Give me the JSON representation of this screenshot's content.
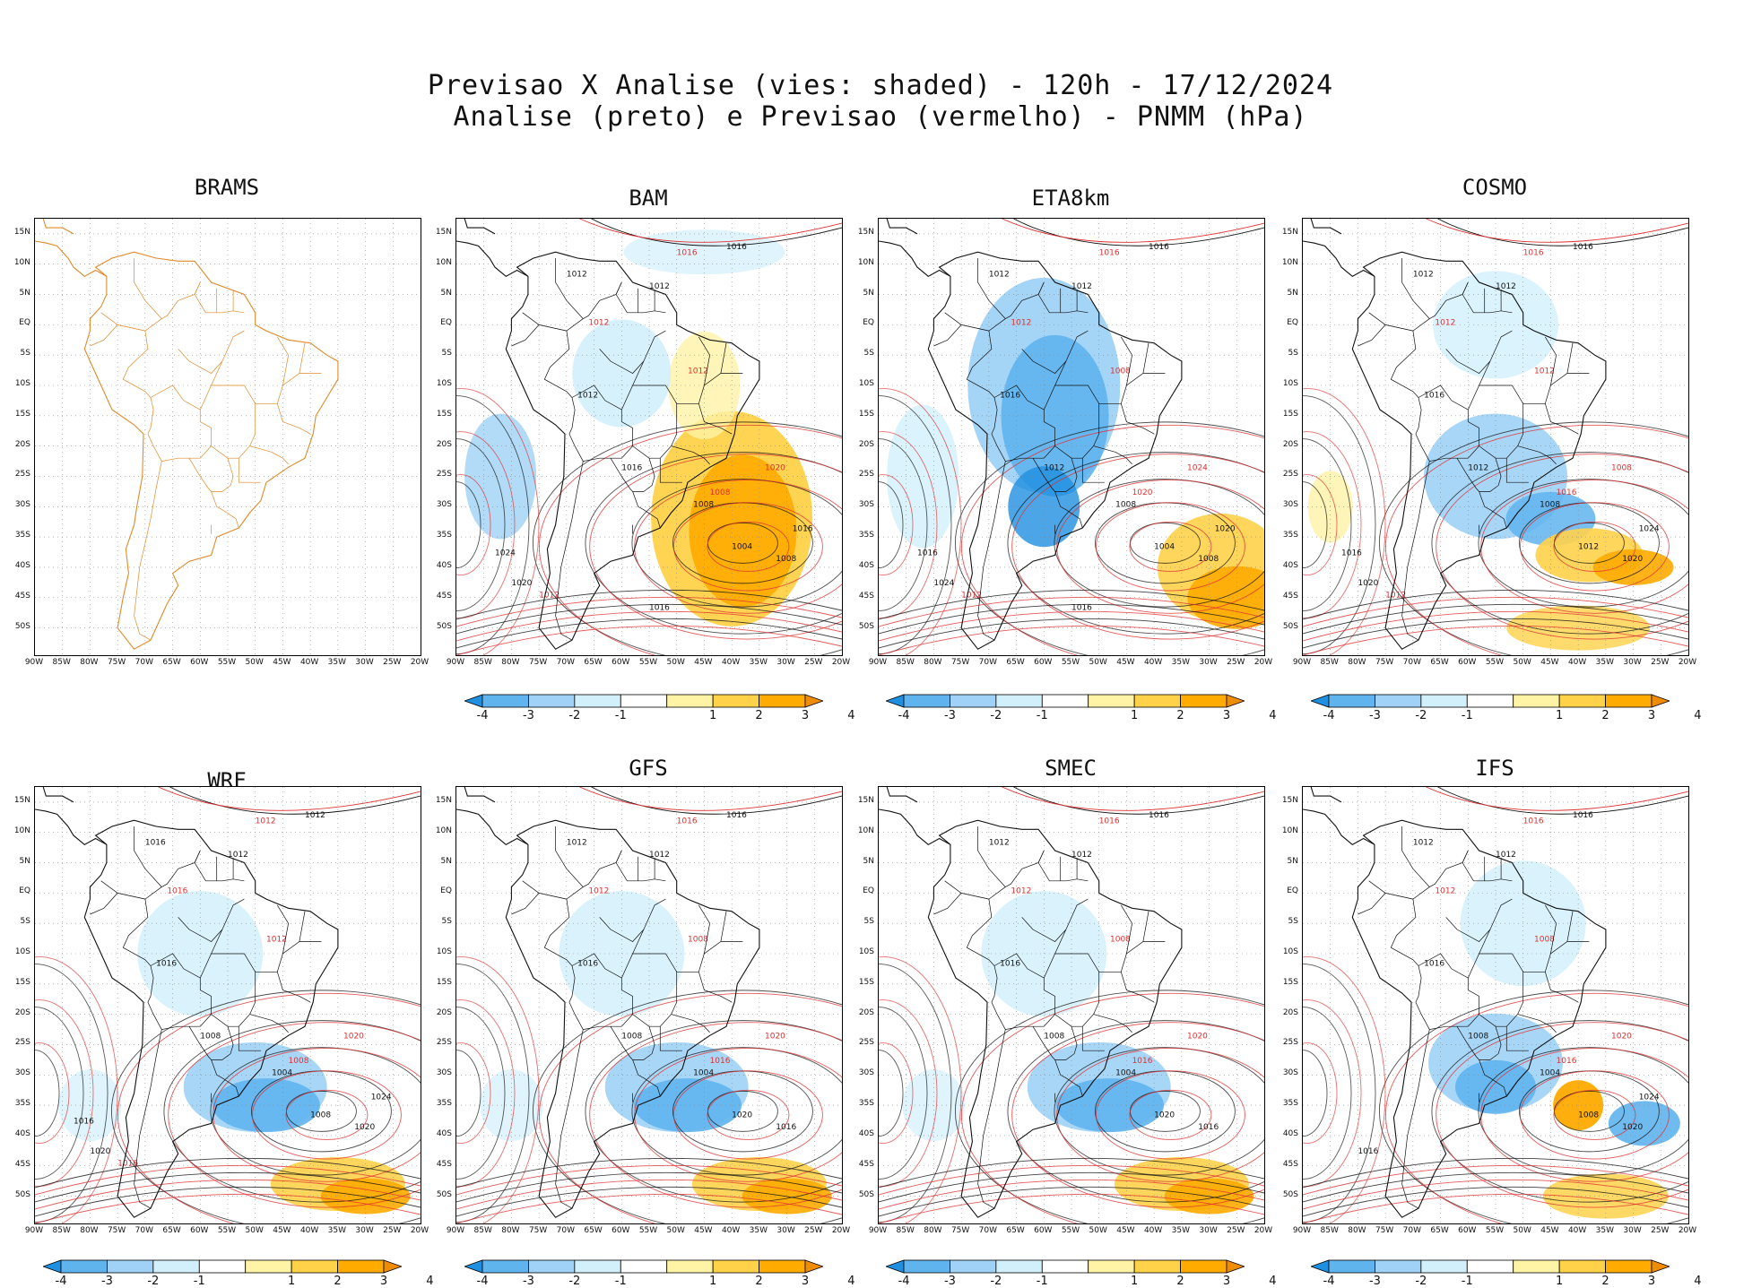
{
  "title": {
    "line1": "Previsao X Analise (vies: shaded) - 120h - 17/12/2024",
    "line2": "Analise (preto) e Previsao (vermelho) - PNMM (hPa)"
  },
  "lat_labels": [
    "15N",
    "10N",
    "5N",
    "EQ",
    "5S",
    "10S",
    "15S",
    "20S",
    "25S",
    "30S",
    "35S",
    "40S",
    "45S",
    "50S"
  ],
  "lon_labels": [
    "90W",
    "85W",
    "80W",
    "75W",
    "70W",
    "65W",
    "60W",
    "55W",
    "50W",
    "45W",
    "40W",
    "35W",
    "30W",
    "25W",
    "20W"
  ],
  "colorbar": {
    "labels": [
      "-4",
      "-3",
      "-2",
      "-1",
      "1",
      "2",
      "3",
      "4"
    ],
    "colors": [
      "#1f8fe0",
      "#5fb4ee",
      "#9fd2f6",
      "#d2f0fb",
      "#ffffff",
      "#fff3a6",
      "#ffd24a",
      "#ffab00",
      "#f08c00"
    ]
  },
  "colors": {
    "analysis": "#111111",
    "forecast": "#e03030",
    "coast": "#e08a2a"
  },
  "panels": [
    {
      "name": "BRAMS",
      "title": "BRAMS",
      "bias": "none",
      "colorbar": false,
      "analysis_labels": [],
      "forecast_labels": []
    },
    {
      "name": "BAM",
      "title": "BAM",
      "bias": "warm_east",
      "colorbar": true,
      "analysis_labels": [
        "1016",
        "1012",
        "1012",
        "1012",
        "1016",
        "1008",
        "1004",
        "1008",
        "1016",
        "1020",
        "1024",
        "1016"
      ],
      "forecast_labels": [
        "1016",
        "1012",
        "1012",
        "1008",
        "1020",
        "1012"
      ]
    },
    {
      "name": "ETA8km",
      "title": "ETA8km",
      "bias": "cold_land",
      "colorbar": true,
      "analysis_labels": [
        "1016",
        "1012",
        "1012",
        "1016",
        "1012",
        "1008",
        "1004",
        "1008",
        "1020",
        "1024",
        "1016",
        "1016"
      ],
      "forecast_labels": [
        "1016",
        "1012",
        "1008",
        "1020",
        "1024",
        "1012"
      ]
    },
    {
      "name": "COSMO",
      "title": "COSMO",
      "bias": "mixed",
      "colorbar": true,
      "analysis_labels": [
        "1016",
        "1012",
        "1012",
        "1016",
        "1012",
        "1008",
        "1012",
        "1020",
        "1024",
        "1020",
        "1016"
      ],
      "forecast_labels": [
        "1016",
        "1012",
        "1012",
        "1016",
        "1008",
        "1012"
      ]
    },
    {
      "name": "WRF",
      "title": "WRF",
      "bias": "cold_south",
      "colorbar": true,
      "analysis_labels": [
        "1012",
        "1016",
        "1012",
        "1016",
        "1008",
        "1004",
        "1008",
        "1020",
        "1024",
        "1020",
        "1016"
      ],
      "forecast_labels": [
        "1012",
        "1016",
        "1012",
        "1008",
        "1020",
        "1016"
      ]
    },
    {
      "name": "GFS",
      "title": "GFS",
      "bias": "cold_south",
      "colorbar": true,
      "analysis_labels": [
        "1016",
        "1012",
        "1012",
        "1016",
        "1008",
        "1004",
        "1020",
        "1016"
      ],
      "forecast_labels": [
        "1016",
        "1012",
        "1008",
        "1016",
        "1020"
      ]
    },
    {
      "name": "SMEC",
      "title": "SMEC",
      "bias": "cold_south",
      "colorbar": true,
      "analysis_labels": [
        "1016",
        "1012",
        "1012",
        "1016",
        "1008",
        "1004",
        "1020",
        "1016"
      ],
      "forecast_labels": [
        "1016",
        "1012",
        "1008",
        "1016",
        "1020"
      ]
    },
    {
      "name": "IFS",
      "title": "IFS",
      "bias": "mixed_east",
      "colorbar": true,
      "analysis_labels": [
        "1016",
        "1012",
        "1012",
        "1016",
        "1008",
        "1004",
        "1008",
        "1020",
        "1024",
        "1016"
      ],
      "forecast_labels": [
        "1016",
        "1012",
        "1008",
        "1016",
        "1020"
      ]
    }
  ]
}
